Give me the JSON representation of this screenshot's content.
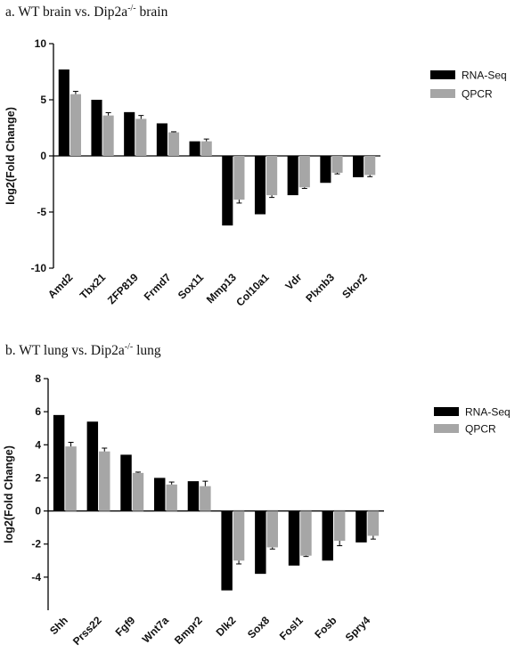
{
  "colors": {
    "rnaseq": "#000000",
    "qpcr": "#a6a6a6"
  },
  "chart_data": [
    {
      "type": "bar",
      "panel_title": {
        "prefix": "a. WT brain vs. Dip2a",
        "sup": "-/-",
        "suffix": " brain"
      },
      "categories": [
        "Amd2",
        "Tbx21",
        "ZFP819",
        "Frmd7",
        "Sox11",
        "Mmp13",
        "Col10a1",
        "Vdr",
        "Plxnb3",
        "Skor2"
      ],
      "series": [
        {
          "name": "RNA-Seq",
          "values": [
            7.7,
            5.0,
            3.9,
            2.9,
            1.3,
            -6.2,
            -5.2,
            -3.5,
            -2.4,
            -1.9
          ],
          "errors": null
        },
        {
          "name": "QPCR",
          "values": [
            5.5,
            3.6,
            3.3,
            2.1,
            1.3,
            -3.9,
            -3.5,
            -2.8,
            -1.5,
            -1.7
          ],
          "errors": [
            0.25,
            0.25,
            0.3,
            0.05,
            0.2,
            0.3,
            0.2,
            0.1,
            0.1,
            0.15
          ]
        }
      ],
      "ylabel": "log2(Fold Change)",
      "ylim": [
        -10,
        10
      ],
      "yticks": [
        "10",
        "5",
        "0",
        "-5",
        "-10"
      ],
      "ytick_values": [
        10,
        5,
        0,
        -5,
        -10
      ],
      "grid": false,
      "legend_position": "top-right"
    },
    {
      "type": "bar",
      "panel_title": {
        "prefix": "b. WT lung vs. Dip2a",
        "sup": "-/-",
        "suffix": " lung"
      },
      "categories": [
        "Shh",
        "Prss22",
        "Fgf9",
        "Wnt7a",
        "Bmpr2",
        "Dlk2",
        "Sox8",
        "Fosl1",
        "Fosb",
        "Spry4"
      ],
      "series": [
        {
          "name": "RNA-Seq",
          "values": [
            5.8,
            5.4,
            3.4,
            2.0,
            1.8,
            -4.8,
            -3.8,
            -3.3,
            -3.0,
            -1.9
          ],
          "errors": null
        },
        {
          "name": "QPCR",
          "values": [
            3.9,
            3.6,
            2.3,
            1.6,
            1.5,
            -3.0,
            -2.2,
            -2.7,
            -1.8,
            -1.5
          ],
          "errors": [
            0.25,
            0.2,
            0.05,
            0.15,
            0.3,
            0.2,
            0.1,
            0.05,
            0.3,
            0.2
          ]
        }
      ],
      "ylabel": "log2(Fold Change)",
      "ylim": [
        -6,
        8
      ],
      "yticks": [
        "8",
        "6",
        "4",
        "2",
        "0",
        "-2",
        "-4"
      ],
      "ytick_values": [
        8,
        6,
        4,
        2,
        0,
        -2,
        -4
      ],
      "grid": false,
      "legend_position": "top-right"
    }
  ]
}
